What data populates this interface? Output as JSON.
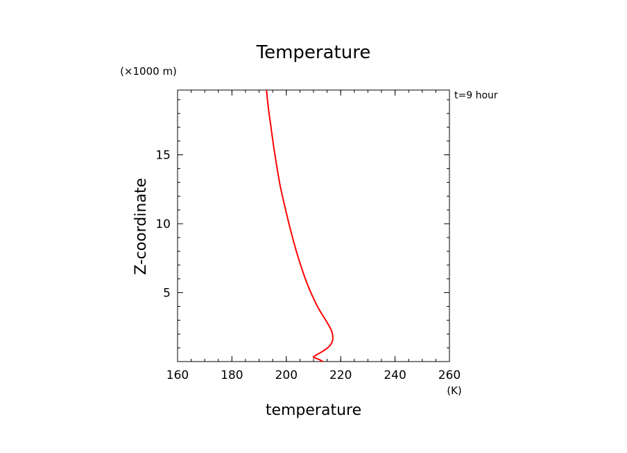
{
  "chart_data": {
    "type": "line",
    "title": "Temperature",
    "xlabel": "temperature",
    "ylabel": "Z-coordinate",
    "x_unit": "(K)",
    "y_unit": "(×1000 m)",
    "time_label": "t=9 hour",
    "xlim": [
      160,
      260
    ],
    "ylim": [
      0,
      19.7
    ],
    "x_ticks": [
      160,
      180,
      200,
      220,
      240,
      260
    ],
    "y_ticks": [
      5,
      10,
      15
    ],
    "x_minor_step": 5,
    "y_minor_step": 1,
    "grid": false,
    "line_color": "#ff0000",
    "series": [
      {
        "x": [
          213.5,
          211.5,
          210.0,
          210.8,
          213.0,
          215.5,
          216.8,
          217.1,
          216.5,
          214.5,
          212.0,
          209.5,
          207.0,
          204.0,
          201.5,
          199.4,
          197.7,
          196.3,
          195.2,
          194.3,
          193.4,
          192.7
        ],
        "y": [
          0.0,
          0.2,
          0.3,
          0.45,
          0.7,
          1.05,
          1.4,
          1.8,
          2.3,
          3.0,
          3.8,
          4.8,
          6.0,
          7.8,
          9.6,
          11.3,
          12.8,
          14.4,
          15.8,
          17.1,
          18.4,
          19.7
        ]
      }
    ]
  }
}
